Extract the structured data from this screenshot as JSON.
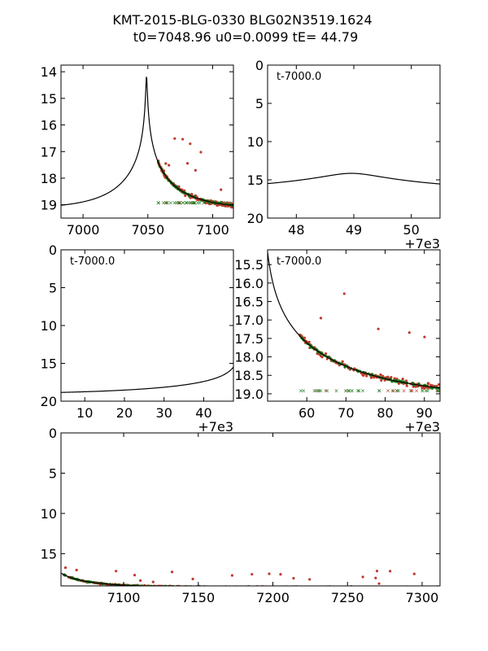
{
  "title_line1": "KMT-2015-BLG-0330 BLG02N3519.1624",
  "title_line2": "t0=7048.96 u0=0.0099 tE=  44.79",
  "colors": {
    "model": "#000000",
    "red": "#c0392b",
    "green": "#1a7a1a"
  },
  "chart_data": [
    {
      "id": "p1",
      "type": "scatter",
      "xlim": [
        6983,
        7116
      ],
      "ylim": [
        13.75,
        19.5
      ],
      "invert_y": true,
      "xticks": [
        7000,
        7050,
        7100
      ],
      "xtick_labels": [
        "7000",
        "7050",
        "7100"
      ],
      "yticks": [
        14,
        15,
        16,
        17,
        18,
        19
      ],
      "ytick_labels": [
        "14",
        "15",
        "16",
        "17",
        "18",
        "19"
      ],
      "annotation": "",
      "offset": "",
      "data_range": [
        7058,
        7116
      ],
      "upper_limits": true
    },
    {
      "id": "p2",
      "type": "line",
      "xlim": [
        47.5,
        50.5
      ],
      "ylim": [
        0,
        20
      ],
      "invert_y": true,
      "xticks": [
        48,
        49,
        50
      ],
      "xtick_labels": [
        "48",
        "49",
        "50"
      ],
      "yticks": [
        0,
        5,
        10,
        15,
        20
      ],
      "ytick_labels": [
        "0",
        "5",
        "10",
        "15",
        "20"
      ],
      "annotation": "t-7000.0",
      "offset": "+7e3"
    },
    {
      "id": "p3",
      "type": "line",
      "xlim": [
        4,
        47.5
      ],
      "ylim": [
        0,
        20
      ],
      "invert_y": true,
      "xticks": [
        10,
        20,
        30,
        40
      ],
      "xtick_labels": [
        "10",
        "20",
        "30",
        "40"
      ],
      "yticks": [
        0,
        5,
        10,
        15,
        20
      ],
      "ytick_labels": [
        "0",
        "5",
        "10",
        "15",
        "20"
      ],
      "annotation": "t-7000.0",
      "offset": "+7e3"
    },
    {
      "id": "p4",
      "type": "scatter",
      "xlim": [
        50,
        94
      ],
      "ylim": [
        15.1,
        19.2
      ],
      "invert_y": true,
      "xticks": [
        60,
        70,
        80,
        90
      ],
      "xtick_labels": [
        "60",
        "70",
        "80",
        "90"
      ],
      "yticks": [
        15.5,
        16.0,
        16.5,
        17.0,
        17.5,
        18.0,
        18.5,
        19.0
      ],
      "ytick_labels": [
        "15.5",
        "16.0",
        "16.5",
        "17.0",
        "17.5",
        "18.0",
        "18.5",
        "19.0"
      ],
      "annotation": "t-7000.0",
      "offset": "+7e3",
      "data_range": [
        58,
        94
      ],
      "upper_limits": true
    },
    {
      "id": "p5",
      "type": "scatter",
      "xlim": [
        7058,
        7312
      ],
      "ylim": [
        0,
        19
      ],
      "invert_y": true,
      "xticks": [
        7100,
        7150,
        7200,
        7250,
        7300
      ],
      "xtick_labels": [
        "7100",
        "7150",
        "7200",
        "7250",
        "7300"
      ],
      "yticks": [
        0,
        5,
        10,
        15
      ],
      "ytick_labels": [
        "0",
        "5",
        "10",
        "15"
      ],
      "annotation": "",
      "offset": "",
      "data_range": [
        7060,
        7312
      ],
      "upper_limits": false
    }
  ]
}
